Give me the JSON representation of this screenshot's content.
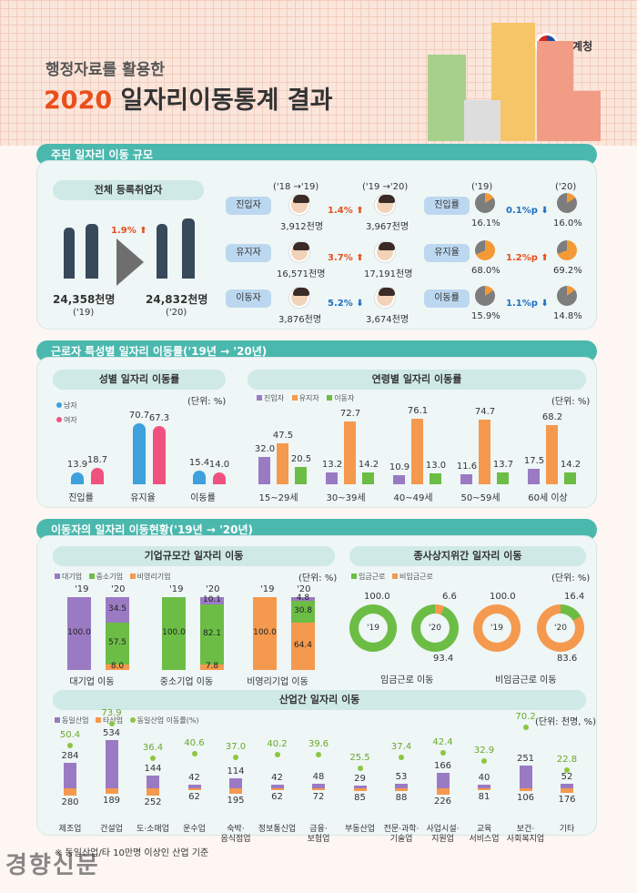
{
  "header": {
    "subtitle": "행정자료를 활용한",
    "title_year": "2020",
    "title_rest": " 일자리이동통계 결과",
    "org": "통계청"
  },
  "s1": {
    "banner": "주된 일자리 이동 규모",
    "pill": "전체 등록취업자",
    "change": "1.9%",
    "left_val": "24,358천명",
    "left_year": "('19)",
    "right_val": "24,832천명",
    "right_year": "('20)",
    "col1": "('18 →'19)",
    "col2": "('19 →'20)",
    "col3": "('19)",
    "col4": "('20)",
    "rows": [
      {
        "label": "진입자",
        "v1": "3,912천명",
        "chg": "1.4%",
        "dir": "up",
        "v2": "3,967천명"
      },
      {
        "label": "유지자",
        "v1": "16,571천명",
        "chg": "3.7%",
        "dir": "up",
        "v2": "17,191천명"
      },
      {
        "label": "이동자",
        "v1": "3,876천명",
        "chg": "5.2%",
        "dir": "down",
        "v2": "3,674천명"
      }
    ],
    "rates": [
      {
        "label": "진입률",
        "v1": "16.1%",
        "chg": "0.1%p",
        "dir": "down",
        "v2": "16.0%"
      },
      {
        "label": "유지율",
        "v1": "68.0%",
        "chg": "1.2%p",
        "dir": "up",
        "v2": "69.2%"
      },
      {
        "label": "이동률",
        "v1": "15.9%",
        "chg": "1.1%p",
        "dir": "down",
        "v2": "14.8%"
      }
    ],
    "arrow_up": "⬆",
    "arrow_down": "⬇"
  },
  "s2": {
    "banner": "근로자 특성별 일자리 이동률('19년 → '20년)",
    "left_pill": "성별 일자리 이동률",
    "right_pill": "연령별 일자리 이동률",
    "unit": "(단위: %)",
    "gender_legend": [
      "남자",
      "여자"
    ],
    "age_legend": [
      "진입자",
      "유지자",
      "이동자"
    ],
    "colors": {
      "male": "#3ea0dc",
      "female": "#f0527f",
      "purple": "#9b7ac4",
      "orange": "#f5994e",
      "green": "#6cbd45"
    }
  },
  "s3": {
    "banner": "이동자의 일자리 이동현황('19년 → '20년)",
    "left_pill": "기업규모간 일자리 이동",
    "right_pill": "종사상지위간 일자리 이동",
    "unit": "(단위: %)",
    "size_legend": [
      "대기업",
      "중소기업",
      "비영리기업"
    ],
    "status_legend": [
      "임금근로",
      "비임금근로"
    ],
    "y19": "'19",
    "y20": "'20",
    "status": [
      {
        "base": "100.0",
        "top": "6.6",
        "bottom": "93.4",
        "name": "임금근로 이동"
      },
      {
        "base": "100.0",
        "top": "16.4",
        "bottom": "83.6",
        "name": "비임금근로 이동"
      }
    ]
  },
  "s4": {
    "pill": "산업간 일자리 이동",
    "unit": "(단위: 천명, %)",
    "legend": [
      "동일산업",
      "타산업",
      "동일산업 이동률(%)"
    ],
    "note": "※ 동일산업/타 10만명 이상인 산업 기준"
  },
  "watermark": "경향신문",
  "chart_data": [
    {
      "type": "bar",
      "title": "성별 일자리 이동률",
      "categories": [
        "진입률",
        "유지율",
        "이동률"
      ],
      "series": [
        {
          "name": "남자",
          "values": [
            13.9,
            70.7,
            15.4
          ]
        },
        {
          "name": "여자",
          "values": [
            18.7,
            67.3,
            14.0
          ]
        }
      ],
      "ylim": [
        0,
        80
      ]
    },
    {
      "type": "bar",
      "title": "연령별 일자리 이동률",
      "categories": [
        "15~29세",
        "30~39세",
        "40~49세",
        "50~59세",
        "60세 이상"
      ],
      "series": [
        {
          "name": "진입자",
          "values": [
            32.0,
            13.2,
            10.9,
            11.6,
            17.5
          ]
        },
        {
          "name": "유지자",
          "values": [
            47.5,
            72.7,
            76.1,
            74.7,
            68.2
          ]
        },
        {
          "name": "이동자",
          "values": [
            20.5,
            14.2,
            13.0,
            13.7,
            14.2
          ]
        }
      ],
      "ylim": [
        0,
        80
      ]
    },
    {
      "type": "bar",
      "title": "기업규모간 일자리 이동",
      "categories": [
        "대기업 이동",
        "중소기업 이동",
        "비영리기업 이동"
      ],
      "series": [
        {
          "name": "대기업",
          "values": [
            34.5,
            10.1,
            4.8
          ]
        },
        {
          "name": "중소기업",
          "values": [
            57.5,
            82.1,
            30.8
          ]
        },
        {
          "name": "비영리기업",
          "values": [
            8.0,
            7.8,
            64.4
          ]
        }
      ],
      "base": "100.0"
    },
    {
      "type": "bar",
      "title": "산업간 일자리 이동",
      "categories": [
        "제조업",
        "건설업",
        "도·소매업",
        "운수업",
        "숙박·\n음식점업",
        "정보통신업",
        "금융·\n보험업",
        "부동산업",
        "전문·과학·\n기술업",
        "사업시설·\n지원업",
        "교육\n서비스업",
        "보건·\n사회복지업",
        "기타"
      ],
      "series": [
        {
          "name": "동일산업",
          "values": [
            284,
            534,
            144,
            42,
            114,
            42,
            48,
            29,
            53,
            166,
            40,
            251,
            52
          ]
        },
        {
          "name": "타산업",
          "values": [
            280,
            189,
            252,
            62,
            195,
            62,
            72,
            85,
            88,
            226,
            81,
            106,
            176
          ]
        },
        {
          "name": "동일산업 이동률(%)",
          "values": [
            50.4,
            73.9,
            36.4,
            40.6,
            37.0,
            40.2,
            39.6,
            25.5,
            37.4,
            42.4,
            32.9,
            70.2,
            22.8
          ]
        }
      ]
    }
  ]
}
